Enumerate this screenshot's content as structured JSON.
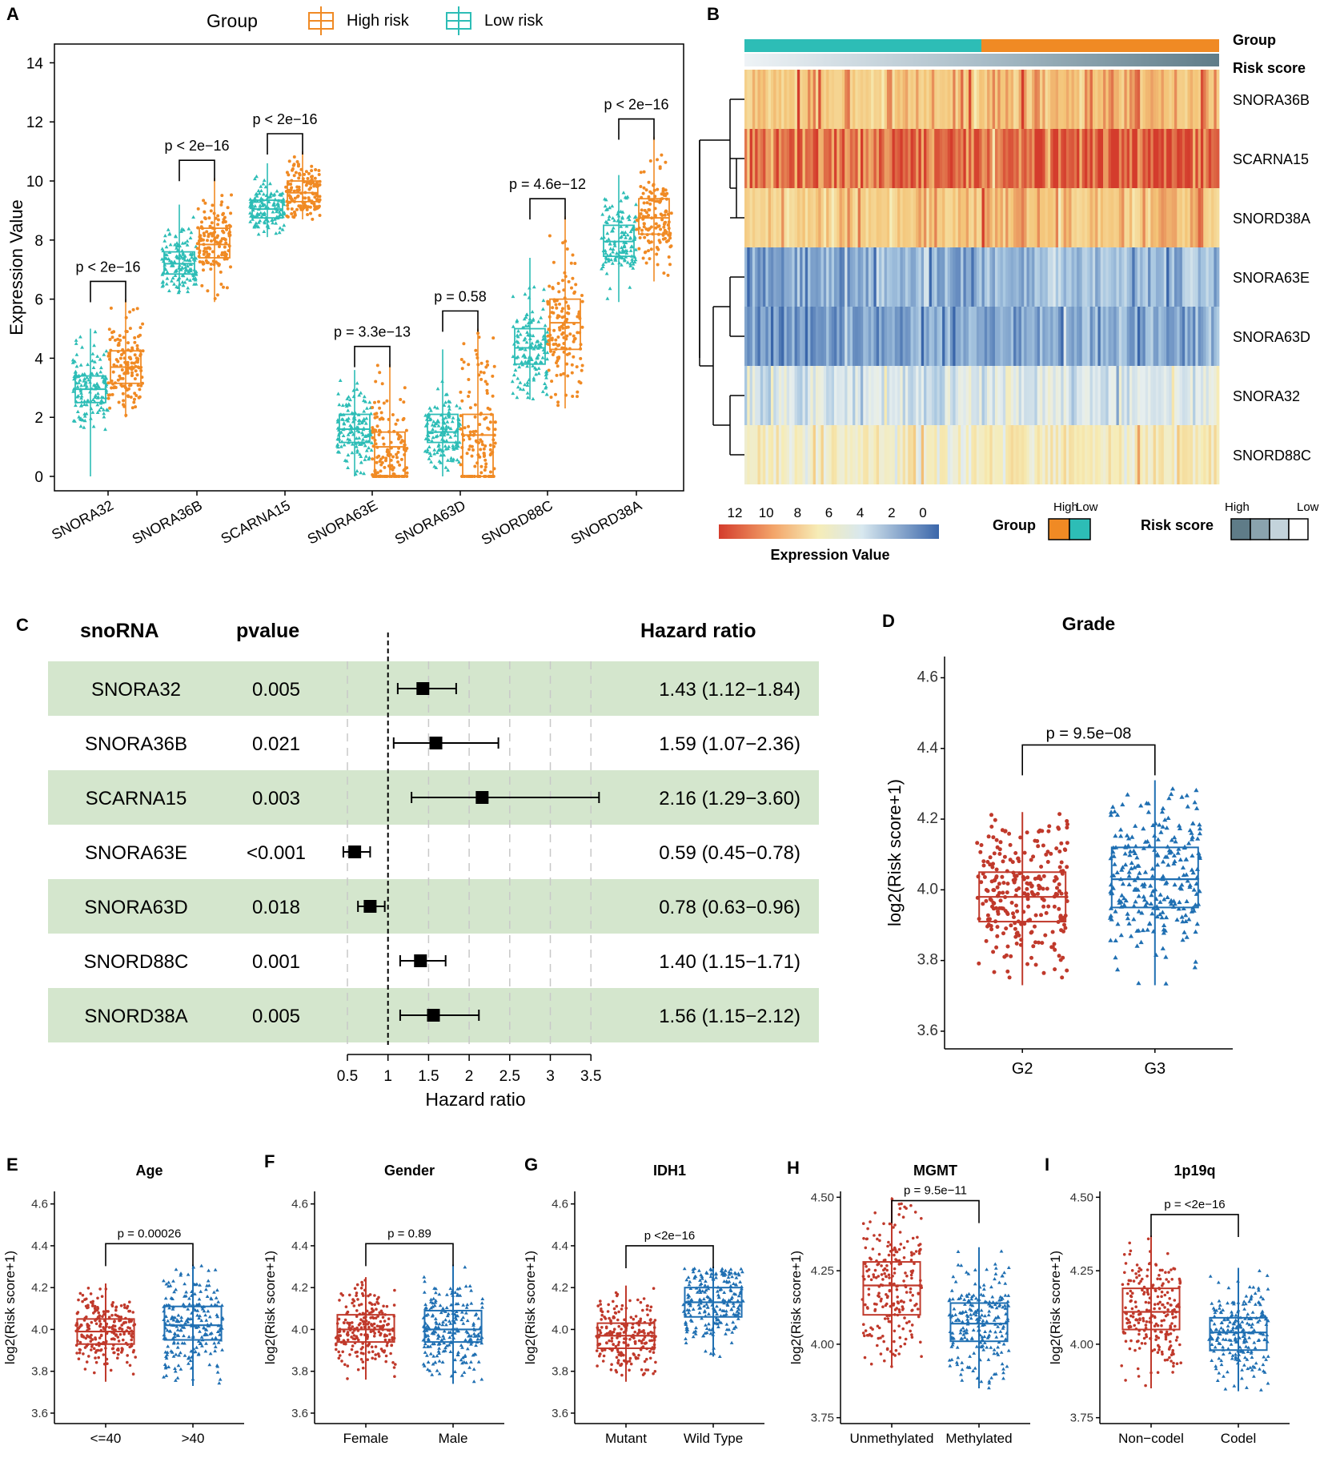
{
  "panel_letters": {
    "A": "A",
    "B": "B",
    "C": "C",
    "D": "D",
    "E": "E",
    "F": "F",
    "G": "G",
    "H": "H",
    "I": "I"
  },
  "colors": {
    "high": "#f08a24",
    "low": "#2dbdb6",
    "red": "#c0392b",
    "blue": "#1f6fb2",
    "forest_bg": "#d4e6cd",
    "hm_low": "#3a66aa",
    "hm_mid": "#f4eebd",
    "hm_high": "#e05a33"
  },
  "chart_data": [
    {
      "id": "A",
      "type": "box",
      "legend_title": "Group",
      "legend": [
        "High risk",
        "Low risk"
      ],
      "ylabel": "Expression Value",
      "ylim": [
        0,
        14.5
      ],
      "yticks": [
        "0",
        "2",
        "4",
        "6",
        "8",
        "10",
        "12",
        "14"
      ],
      "categories": [
        "SNORA32",
        "SNORA36B",
        "SCARNA15",
        "SNORA63E",
        "SNORA63D",
        "SNORD88C",
        "SNORD38A"
      ],
      "pvalues": [
        "p < 2e−16",
        "p < 2e−16",
        "p < 2e−16",
        "p = 3.3e−13",
        "p = 0.58",
        "p = 4.6e−12",
        "p < 2e−16"
      ],
      "series": [
        {
          "name": "Low risk",
          "boxes": [
            [
              0,
              2.5,
              2.95,
              3.4,
              5.0
            ],
            [
              6.2,
              6.85,
              7.2,
              7.6,
              9.2
            ],
            [
              8.1,
              8.75,
              9.05,
              9.35,
              10.6
            ],
            [
              0,
              1.15,
              1.6,
              2.1,
              3.6
            ],
            [
              0,
              1.15,
              1.5,
              2.1,
              4.3
            ],
            [
              2.6,
              3.8,
              4.35,
              5.0,
              7.4
            ],
            [
              5.9,
              7.45,
              7.95,
              8.5,
              10.2
            ]
          ]
        },
        {
          "name": "High risk",
          "boxes": [
            [
              2.0,
              3.15,
              3.7,
              4.25,
              6.0
            ],
            [
              5.9,
              7.4,
              7.85,
              8.4,
              10.1
            ],
            [
              8.7,
              9.3,
              9.6,
              10.0,
              11.0
            ],
            [
              0,
              0,
              1.0,
              1.5,
              3.8
            ],
            [
              0,
              0,
              1.4,
              2.1,
              5.0
            ],
            [
              2.3,
              4.3,
              5.2,
              6.0,
              8.8
            ],
            [
              6.6,
              8.2,
              8.75,
              9.4,
              11.5
            ]
          ]
        }
      ]
    },
    {
      "id": "B",
      "type": "heatmap",
      "rows": [
        "SNORA36B",
        "SCARNA15",
        "SNORD38A",
        "SNORA63E",
        "SNORA63D",
        "SNORA32",
        "SNORD88C"
      ],
      "row_means": [
        9.4,
        11.2,
        9.0,
        2.6,
        1.9,
        4.6,
        6.7
      ],
      "annotation_rows": [
        "Group",
        "Risk score"
      ],
      "colorbar_ticks": [
        "12",
        "10",
        "8",
        "6",
        "4",
        "2",
        "0"
      ],
      "colorbar_label": "Expression Value",
      "group_legend": {
        "title": "Group",
        "labels": [
          "High",
          "Low"
        ]
      },
      "risk_legend": {
        "title": "Risk score",
        "labels": [
          "High",
          "Low"
        ]
      }
    },
    {
      "id": "C",
      "type": "forest",
      "headers": {
        "name": "snoRNA",
        "p": "pvalue",
        "hr": "Hazard  ratio"
      },
      "rows": [
        {
          "name": "SNORA32",
          "p": "0.005",
          "hr": 1.43,
          "lo": 1.12,
          "hi": 1.84,
          "label": "1.43 (1.12−1.84)"
        },
        {
          "name": "SNORA36B",
          "p": "0.021",
          "hr": 1.59,
          "lo": 1.07,
          "hi": 2.36,
          "label": "1.59 (1.07−2.36)"
        },
        {
          "name": "SCARNA15",
          "p": "0.003",
          "hr": 2.16,
          "lo": 1.29,
          "hi": 3.6,
          "label": "2.16 (1.29−3.60)"
        },
        {
          "name": "SNORA63E",
          "p": "<0.001",
          "hr": 0.59,
          "lo": 0.45,
          "hi": 0.78,
          "label": "0.59 (0.45−0.78)"
        },
        {
          "name": "SNORA63D",
          "p": "0.018",
          "hr": 0.78,
          "lo": 0.63,
          "hi": 0.96,
          "label": "0.78 (0.63−0.96)"
        },
        {
          "name": "SNORD88C",
          "p": "0.001",
          "hr": 1.4,
          "lo": 1.15,
          "hi": 1.71,
          "label": "1.40 (1.15−1.71)"
        },
        {
          "name": "SNORD38A",
          "p": "0.005",
          "hr": 1.56,
          "lo": 1.15,
          "hi": 2.12,
          "label": "1.56 (1.15−2.12)"
        }
      ],
      "xticks": [
        "0.5",
        "1",
        "1.5",
        "2",
        "2.5",
        "3",
        "3.5"
      ],
      "xlabel": "Hazard ratio",
      "reference": 1
    },
    {
      "id": "D",
      "type": "box",
      "title": "Grade",
      "ylabel": "log2(Risk score+1)",
      "ylim": [
        3.55,
        4.66
      ],
      "yticks": [
        "3.6",
        "3.8",
        "4.0",
        "4.2",
        "4.4",
        "4.6"
      ],
      "categories": [
        "G2",
        "G3"
      ],
      "pvalue": "p = 9.5e−08",
      "boxes": [
        [
          3.73,
          3.91,
          3.98,
          4.05,
          4.22
        ],
        [
          3.73,
          3.95,
          4.03,
          4.12,
          4.31
        ]
      ]
    },
    {
      "id": "E",
      "type": "box",
      "title": "Age",
      "ylabel": "log2(Risk score+1)",
      "ylim": [
        3.55,
        4.66
      ],
      "yticks": [
        "3.6",
        "3.8",
        "4.0",
        "4.2",
        "4.4",
        "4.6"
      ],
      "categories": [
        "<=40",
        ">40"
      ],
      "pvalue": "p = 0.00026",
      "boxes": [
        [
          3.75,
          3.93,
          3.99,
          4.05,
          4.22
        ],
        [
          3.73,
          3.95,
          4.02,
          4.11,
          4.31
        ]
      ]
    },
    {
      "id": "F",
      "type": "box",
      "title": "Gender",
      "ylabel": "log2(Risk score+1)",
      "ylim": [
        3.55,
        4.66
      ],
      "yticks": [
        "3.6",
        "3.8",
        "4.0",
        "4.2",
        "4.4",
        "4.6"
      ],
      "categories": [
        "Female",
        "Male"
      ],
      "pvalue": "p = 0.89",
      "boxes": [
        [
          3.76,
          3.94,
          4.0,
          4.07,
          4.25
        ],
        [
          3.74,
          3.94,
          4.0,
          4.09,
          4.31
        ]
      ]
    },
    {
      "id": "G",
      "type": "box",
      "title": "IDH1",
      "ylabel": "log2(Risk score+1)",
      "ylim": [
        3.55,
        4.66
      ],
      "yticks": [
        "3.6",
        "3.8",
        "4.0",
        "4.2",
        "4.4",
        "4.6"
      ],
      "categories": [
        "Mutant",
        "Wild Type"
      ],
      "pvalue": "p <2e−16",
      "boxes": [
        [
          3.75,
          3.91,
          3.97,
          4.03,
          4.21
        ],
        [
          3.87,
          4.06,
          4.13,
          4.2,
          4.3
        ]
      ]
    },
    {
      "id": "H",
      "type": "box",
      "title": "MGMT",
      "ylabel": "log2(Risk score+1)",
      "ylim": [
        3.73,
        4.52
      ],
      "yticks": [
        "3.75",
        "4.00",
        "4.25",
        "4.50"
      ],
      "categories": [
        "Unmethylated",
        "Methylated"
      ],
      "pvalue": "p = 9.5e−11",
      "boxes": [
        [
          3.92,
          4.1,
          4.2,
          4.28,
          4.5
        ],
        [
          3.85,
          4.01,
          4.07,
          4.14,
          4.33
        ]
      ]
    },
    {
      "id": "I",
      "type": "box",
      "title": "1p19q",
      "ylabel": "log2(Risk score+1)",
      "ylim": [
        3.73,
        4.52
      ],
      "yticks": [
        "3.75",
        "4.00",
        "4.25",
        "4.50"
      ],
      "categories": [
        "Non−codel",
        "Codel"
      ],
      "pvalue": "p = <2e−16",
      "boxes": [
        [
          3.85,
          4.05,
          4.11,
          4.19,
          4.37
        ],
        [
          3.84,
          3.98,
          4.04,
          4.09,
          4.26
        ]
      ]
    }
  ]
}
